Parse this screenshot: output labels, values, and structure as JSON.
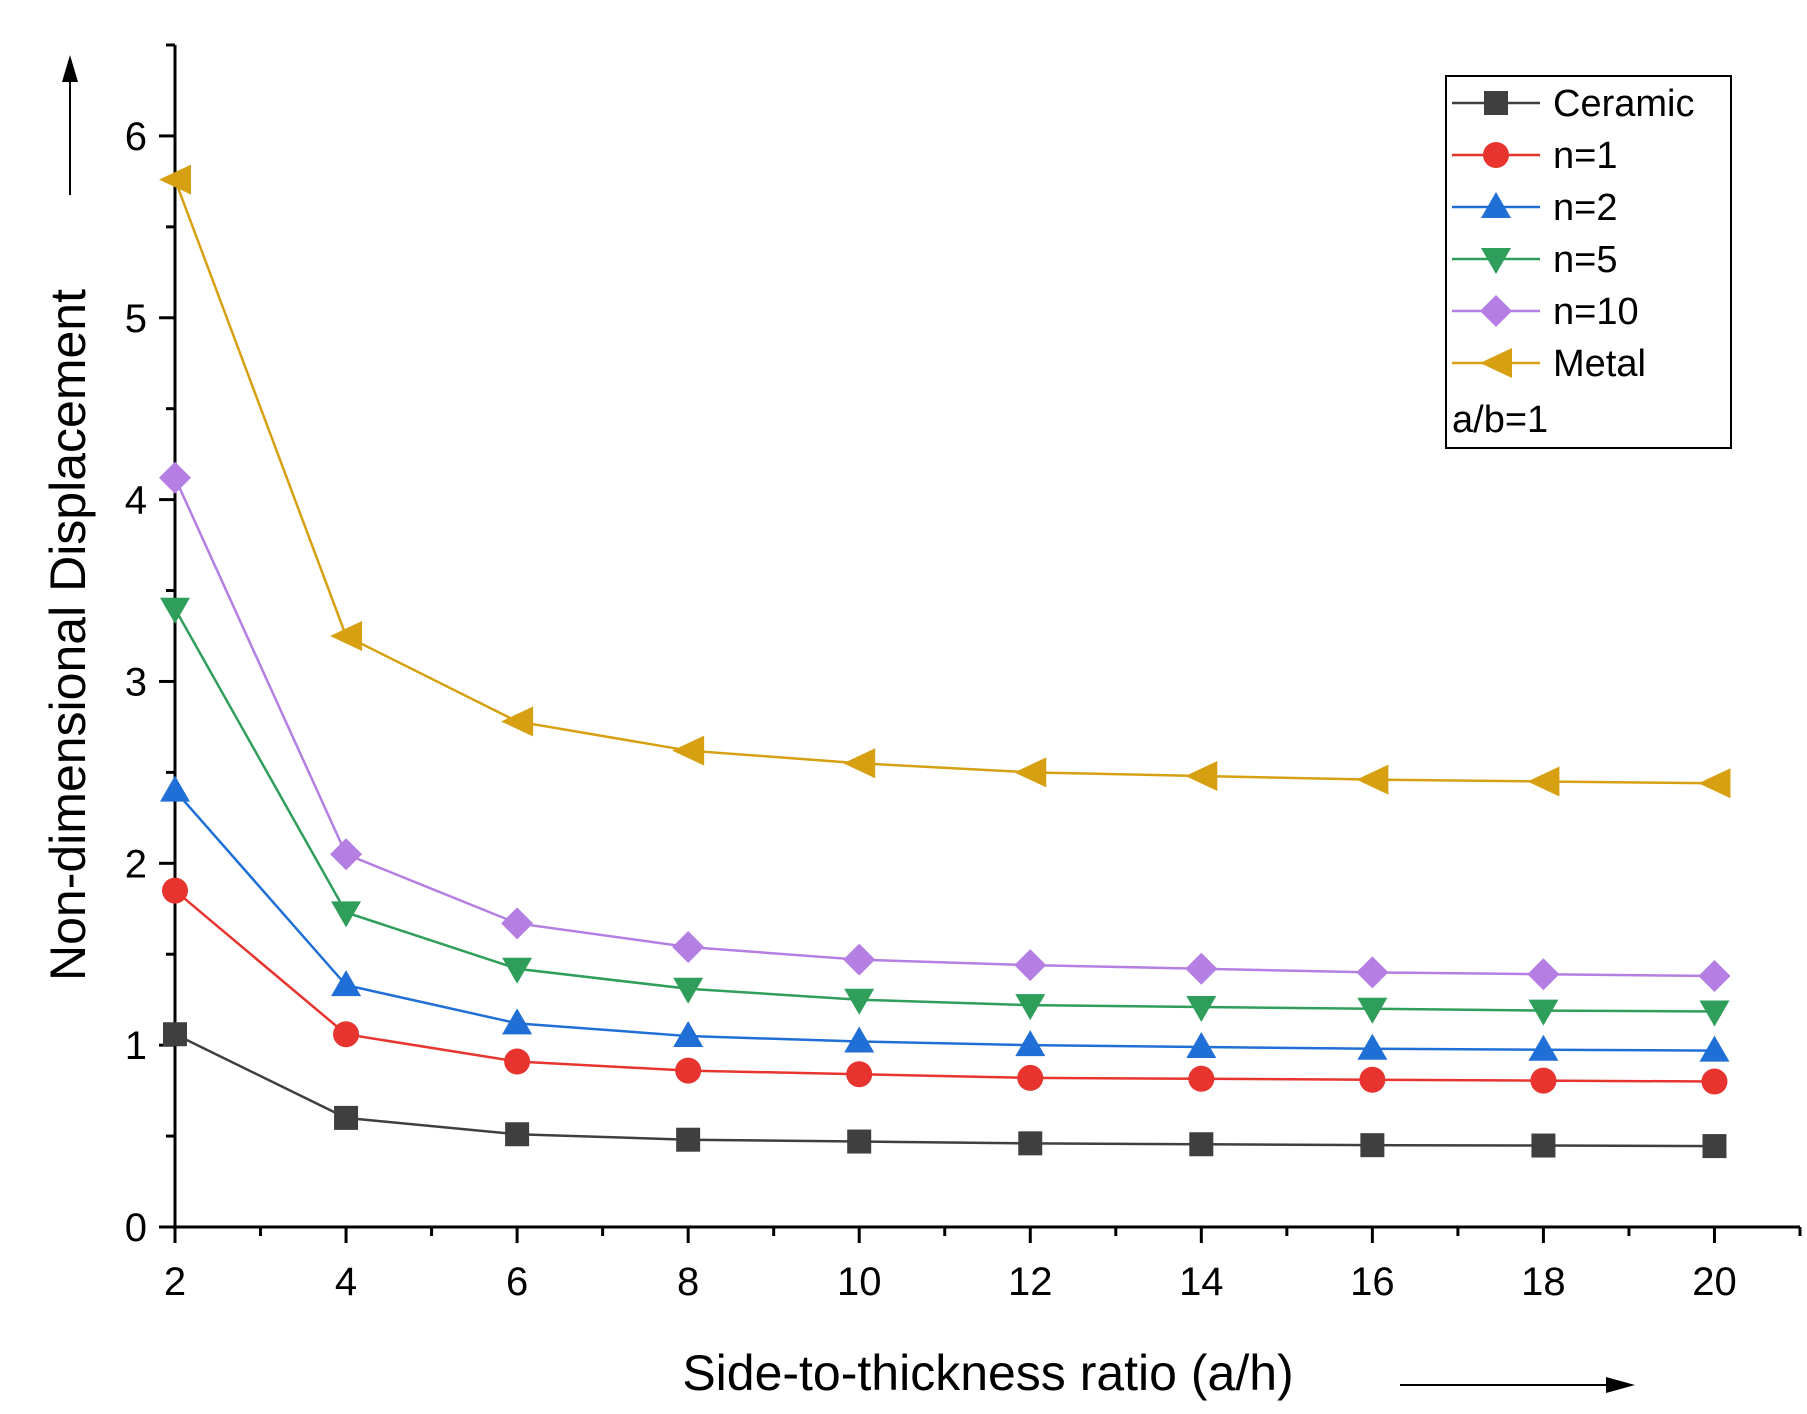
{
  "chart_data": {
    "type": "line",
    "title": "",
    "xlabel": "Side-to-thickness ratio (a/h)",
    "ylabel": "Non-dimensional Displacement",
    "x": [
      2,
      4,
      6,
      8,
      10,
      12,
      14,
      16,
      18,
      20
    ],
    "xlim": [
      2,
      21
    ],
    "ylim": [
      0,
      6.5
    ],
    "x_ticks": [
      "2",
      "4",
      "6",
      "8",
      "10",
      "12",
      "14",
      "16",
      "18",
      "20"
    ],
    "y_ticks": [
      "0",
      "1",
      "2",
      "3",
      "4",
      "5",
      "6"
    ],
    "grid": false,
    "legend_position": "top-right",
    "legend_note": "a/b=1",
    "series": [
      {
        "name": "Ceramic",
        "color": "#3f3f3f",
        "marker": "square",
        "values": [
          1.06,
          0.6,
          0.51,
          0.48,
          0.47,
          0.46,
          0.455,
          0.45,
          0.448,
          0.445
        ]
      },
      {
        "name": "n=1",
        "color": "#e8342f",
        "marker": "circle",
        "values": [
          1.85,
          1.06,
          0.91,
          0.86,
          0.84,
          0.82,
          0.815,
          0.81,
          0.805,
          0.8
        ]
      },
      {
        "name": "n=2",
        "color": "#1f6fd6",
        "marker": "triangle-up",
        "values": [
          2.4,
          1.33,
          1.12,
          1.05,
          1.02,
          1.0,
          0.99,
          0.98,
          0.975,
          0.97
        ]
      },
      {
        "name": "n=5",
        "color": "#2f9e5b",
        "marker": "triangle-down",
        "values": [
          3.4,
          1.73,
          1.42,
          1.31,
          1.25,
          1.22,
          1.21,
          1.2,
          1.19,
          1.185
        ]
      },
      {
        "name": "n=10",
        "color": "#b57ee3",
        "marker": "diamond",
        "values": [
          4.12,
          2.05,
          1.67,
          1.54,
          1.47,
          1.44,
          1.42,
          1.4,
          1.39,
          1.38
        ]
      },
      {
        "name": "Metal",
        "color": "#d6a012",
        "marker": "triangle-left",
        "values": [
          5.76,
          3.25,
          2.78,
          2.62,
          2.55,
          2.5,
          2.48,
          2.46,
          2.45,
          2.44
        ]
      }
    ]
  }
}
